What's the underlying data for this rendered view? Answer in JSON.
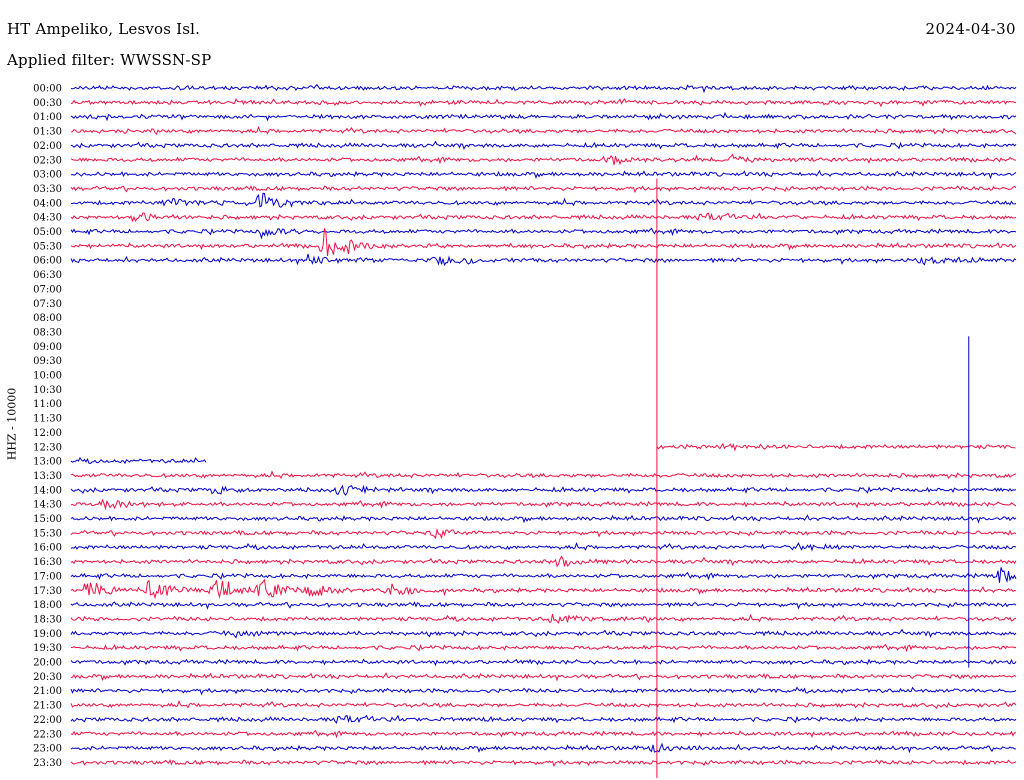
{
  "header": {
    "station": "HT Ampeliko, Lesvos Isl.",
    "date": "2024-04-30",
    "filter": "Applied filter: WWSSN-SP"
  },
  "chart_data": {
    "type": "line",
    "title": "HT Ampeliko, Lesvos Isl.",
    "date": "2024-04-30",
    "subtitle": "Applied filter: WWSSN-SP",
    "ylabel": "HHZ - 10000",
    "grid": false,
    "colors": [
      "#0000cc",
      "#ee1144"
    ],
    "rows": [
      {
        "label": "00:00",
        "data": true
      },
      {
        "label": "00:30",
        "data": true
      },
      {
        "label": "01:00",
        "data": true
      },
      {
        "label": "01:30",
        "data": true
      },
      {
        "label": "02:00",
        "data": true
      },
      {
        "label": "02:30",
        "data": true
      },
      {
        "label": "03:00",
        "data": true
      },
      {
        "label": "03:30",
        "data": true
      },
      {
        "label": "04:00",
        "data": true
      },
      {
        "label": "04:30",
        "data": true
      },
      {
        "label": "05:00",
        "data": true
      },
      {
        "label": "05:30",
        "data": true
      },
      {
        "label": "06:00",
        "data": true
      },
      {
        "label": "06:30",
        "data": false
      },
      {
        "label": "07:00",
        "data": false
      },
      {
        "label": "07:30",
        "data": false
      },
      {
        "label": "08:00",
        "data": false
      },
      {
        "label": "08:30",
        "data": false
      },
      {
        "label": "09:00",
        "data": false
      },
      {
        "label": "09:30",
        "data": false
      },
      {
        "label": "10:00",
        "data": false
      },
      {
        "label": "10:30",
        "data": false
      },
      {
        "label": "11:00",
        "data": false
      },
      {
        "label": "11:30",
        "data": false
      },
      {
        "label": "12:00",
        "data": false
      },
      {
        "label": "12:30",
        "data": "partial"
      },
      {
        "label": "13:00",
        "data": "partial"
      },
      {
        "label": "13:30",
        "data": true
      },
      {
        "label": "14:00",
        "data": true
      },
      {
        "label": "14:30",
        "data": true
      },
      {
        "label": "15:00",
        "data": true
      },
      {
        "label": "15:30",
        "data": true
      },
      {
        "label": "16:00",
        "data": true
      },
      {
        "label": "16:30",
        "data": true
      },
      {
        "label": "17:00",
        "data": true
      },
      {
        "label": "17:30",
        "data": true
      },
      {
        "label": "18:00",
        "data": true
      },
      {
        "label": "18:30",
        "data": true
      },
      {
        "label": "19:00",
        "data": true
      },
      {
        "label": "19:30",
        "data": true
      },
      {
        "label": "20:00",
        "data": true
      },
      {
        "label": "20:30",
        "data": true
      },
      {
        "label": "21:00",
        "data": true
      },
      {
        "label": "21:30",
        "data": true
      },
      {
        "label": "22:00",
        "data": true
      },
      {
        "label": "22:30",
        "data": true
      },
      {
        "label": "23:00",
        "data": true
      },
      {
        "label": "23:30",
        "data": true
      }
    ],
    "events": [
      {
        "row": "02:30",
        "minute": 17,
        "amp": 0.6
      },
      {
        "row": "02:30",
        "minute": 21,
        "amp": 0.5
      },
      {
        "row": "04:00",
        "minute": 3,
        "amp": 0.5
      },
      {
        "row": "04:00",
        "minute": 6,
        "amp": 1.2
      },
      {
        "row": "04:30",
        "minute": 2,
        "amp": 0.6
      },
      {
        "row": "04:30",
        "minute": 20,
        "amp": 0.5
      },
      {
        "row": "05:00",
        "minute": 6,
        "amp": 0.8
      },
      {
        "row": "05:30",
        "minute": 8,
        "amp": 2.6
      },
      {
        "row": "06:00",
        "minute": 7.5,
        "amp": 0.7
      },
      {
        "row": "06:00",
        "minute": 11.5,
        "amp": 0.6
      },
      {
        "row": "06:00",
        "minute": 27,
        "amp": 0.6
      },
      {
        "row": "12:30",
        "minute": 20.5,
        "amp": 0.5
      },
      {
        "row": "14:00",
        "minute": 4.5,
        "amp": 0.6
      },
      {
        "row": "14:00",
        "minute": 8.5,
        "amp": 0.8
      },
      {
        "row": "14:30",
        "minute": 1,
        "amp": 1.0
      },
      {
        "row": "15:30",
        "minute": 11.5,
        "amp": 0.6
      },
      {
        "row": "16:00",
        "minute": 23,
        "amp": 0.5
      },
      {
        "row": "16:30",
        "minute": 15.5,
        "amp": 0.6
      },
      {
        "row": "17:00",
        "minute": 29.4,
        "amp": 0.9
      },
      {
        "row": "17:30",
        "minute": 0.5,
        "amp": 1.5
      },
      {
        "row": "17:30",
        "minute": 2.5,
        "amp": 1.5
      },
      {
        "row": "17:30",
        "minute": 4.5,
        "amp": 2.0
      },
      {
        "row": "17:30",
        "minute": 6,
        "amp": 1.6
      },
      {
        "row": "17:30",
        "minute": 7.5,
        "amp": 1.2
      },
      {
        "row": "17:30",
        "minute": 10,
        "amp": 1.0
      },
      {
        "row": "18:30",
        "minute": 15.3,
        "amp": 0.9
      },
      {
        "row": "19:00",
        "minute": 5,
        "amp": 0.5
      },
      {
        "row": "22:00",
        "minute": 8.5,
        "amp": 0.5
      },
      {
        "row": "23:00",
        "minute": 18.5,
        "amp": 0.5
      }
    ],
    "spikes": [
      {
        "minute": 18.6,
        "from_row": "03:30",
        "to_row": "23:30"
      },
      {
        "minute": 28.5,
        "from_row": "09:00",
        "to_row": "19:30"
      }
    ]
  }
}
